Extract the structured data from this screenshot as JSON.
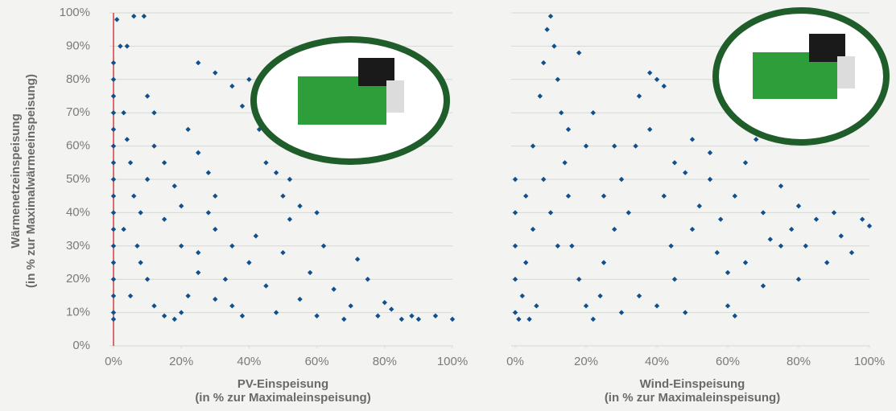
{
  "chart_data": [
    {
      "type": "scatter",
      "color": "#11508c",
      "y_label_lines": [
        "Wärmenetzeinspeisung",
        "(in % zur Maximalwärmeeinspeisung)"
      ],
      "x_label_lines": [
        "PV-Einspeisung",
        "(in % zur Maximaleinspeisung)"
      ],
      "xlim": [
        0,
        100
      ],
      "ylim": [
        0,
        100
      ],
      "grid": true,
      "xticks": [
        {
          "value": 0,
          "label": "0%"
        },
        {
          "value": 20,
          "label": "20%"
        },
        {
          "value": 40,
          "label": "40%"
        },
        {
          "value": 60,
          "label": "60%"
        },
        {
          "value": 80,
          "label": "80%"
        },
        {
          "value": 100,
          "label": "100%"
        }
      ],
      "yticks": [
        {
          "value": 0,
          "label": "0%"
        },
        {
          "value": 10,
          "label": "10%"
        },
        {
          "value": 20,
          "label": "20%"
        },
        {
          "value": 30,
          "label": "30%"
        },
        {
          "value": 40,
          "label": "40%"
        },
        {
          "value": 50,
          "label": "50%"
        },
        {
          "value": 60,
          "label": "60%"
        },
        {
          "value": 70,
          "label": "70%"
        },
        {
          "value": 80,
          "label": "80%"
        },
        {
          "value": 90,
          "label": "90%"
        },
        {
          "value": 100,
          "label": "100%"
        }
      ],
      "x": [
        0,
        0,
        0,
        0,
        0,
        0,
        0,
        0,
        0,
        0,
        0,
        0,
        0,
        0,
        0,
        0,
        0,
        1,
        2,
        3,
        4,
        5,
        6,
        3,
        7,
        8,
        10,
        5,
        12,
        15,
        18,
        20,
        22,
        25,
        28,
        30,
        33,
        35,
        38,
        40,
        42,
        45,
        48,
        50,
        52,
        55,
        58,
        60,
        62,
        65,
        68,
        70,
        72,
        75,
        78,
        80,
        82,
        85,
        88,
        90,
        95,
        100,
        12,
        15,
        18,
        20,
        22,
        25,
        28,
        30,
        10,
        12,
        25,
        30,
        35,
        38,
        40,
        43,
        45,
        48,
        50,
        52,
        55,
        60,
        15,
        20,
        25,
        30,
        35,
        10,
        8,
        4,
        6,
        9
      ],
      "values": [
        85,
        80,
        75,
        70,
        65,
        60,
        55,
        50,
        45,
        40,
        35,
        30,
        25,
        20,
        15,
        10,
        8,
        98,
        90,
        70,
        62,
        55,
        45,
        35,
        30,
        25,
        20,
        15,
        12,
        9,
        8,
        10,
        15,
        28,
        40,
        35,
        20,
        12,
        9,
        25,
        33,
        18,
        10,
        28,
        38,
        14,
        22,
        9,
        30,
        17,
        8,
        12,
        26,
        20,
        9,
        13,
        11,
        8,
        9,
        8,
        9,
        8,
        60,
        55,
        48,
        42,
        65,
        58,
        52,
        45,
        75,
        70,
        85,
        82,
        78,
        72,
        80,
        65,
        55,
        52,
        45,
        50,
        42,
        40,
        38,
        30,
        22,
        14,
        30,
        50,
        40,
        90,
        99,
        99
      ]
    },
    {
      "type": "scatter",
      "color": "#11508c",
      "x_label_lines": [
        "Wind-Einspeisung",
        "(in % zur Maximaleinspeisung)"
      ],
      "xlim": [
        0,
        100
      ],
      "ylim": [
        0,
        100
      ],
      "grid": true,
      "xticks": [
        {
          "value": 0,
          "label": "0%"
        },
        {
          "value": 20,
          "label": "20%"
        },
        {
          "value": 40,
          "label": "40%"
        },
        {
          "value": 60,
          "label": "60%"
        },
        {
          "value": 80,
          "label": "80%"
        },
        {
          "value": 100,
          "label": "100%"
        }
      ],
      "yticks": [
        0,
        10,
        20,
        30,
        40,
        50,
        60,
        70,
        80,
        90,
        100
      ],
      "x": [
        0,
        0,
        0,
        0,
        0,
        1,
        2,
        3,
        5,
        5,
        7,
        8,
        9,
        10,
        11,
        12,
        13,
        14,
        15,
        16,
        18,
        20,
        22,
        24,
        25,
        28,
        30,
        32,
        34,
        35,
        38,
        40,
        42,
        44,
        45,
        48,
        50,
        52,
        55,
        57,
        60,
        62,
        58,
        62,
        65,
        68,
        70,
        72,
        75,
        78,
        80,
        82,
        85,
        88,
        90,
        92,
        95,
        98,
        100,
        60,
        65,
        70,
        75,
        80,
        30,
        35,
        40,
        20,
        22,
        18,
        15,
        8,
        10,
        12,
        25,
        28,
        45,
        50,
        55,
        42,
        38,
        48,
        3,
        4,
        6
      ],
      "values": [
        10,
        20,
        30,
        40,
        50,
        8,
        15,
        25,
        35,
        60,
        75,
        85,
        95,
        99,
        90,
        80,
        70,
        55,
        45,
        30,
        20,
        12,
        8,
        15,
        25,
        35,
        50,
        40,
        60,
        75,
        65,
        80,
        45,
        30,
        20,
        10,
        35,
        42,
        50,
        28,
        12,
        9,
        38,
        45,
        55,
        62,
        40,
        32,
        48,
        35,
        42,
        30,
        38,
        25,
        40,
        33,
        28,
        38,
        36,
        22,
        25,
        18,
        30,
        20,
        10,
        15,
        12,
        60,
        70,
        88,
        65,
        50,
        40,
        30,
        45,
        60,
        55,
        62,
        58,
        78,
        82,
        52,
        45,
        8,
        12
      ]
    }
  ]
}
